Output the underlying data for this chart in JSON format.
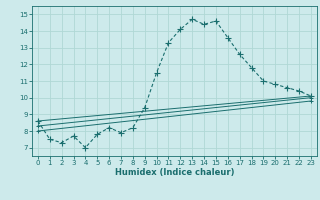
{
  "xlabel": "Humidex (Indice chaleur)",
  "bg_color": "#cdeaeb",
  "grid_color": "#b0d8d5",
  "line_color": "#1a6e6e",
  "xlim": [
    -0.5,
    23.5
  ],
  "ylim": [
    6.5,
    15.5
  ],
  "yticks": [
    7,
    8,
    9,
    10,
    11,
    12,
    13,
    14,
    15
  ],
  "xticks": [
    0,
    1,
    2,
    3,
    4,
    5,
    6,
    7,
    8,
    9,
    10,
    11,
    12,
    13,
    14,
    15,
    16,
    17,
    18,
    19,
    20,
    21,
    22,
    23
  ],
  "main_curve": [
    [
      0,
      8.6
    ],
    [
      1,
      7.5
    ],
    [
      2,
      7.3
    ],
    [
      3,
      7.7
    ],
    [
      4,
      7.0
    ],
    [
      5,
      7.8
    ],
    [
      6,
      8.2
    ],
    [
      7,
      7.9
    ],
    [
      8,
      8.2
    ],
    [
      9,
      9.4
    ],
    [
      10,
      11.5
    ],
    [
      11,
      13.3
    ],
    [
      12,
      14.1
    ],
    [
      13,
      14.7
    ],
    [
      14,
      14.4
    ],
    [
      15,
      14.6
    ],
    [
      16,
      13.6
    ],
    [
      17,
      12.6
    ],
    [
      18,
      11.8
    ],
    [
      19,
      11.0
    ],
    [
      20,
      10.8
    ],
    [
      21,
      10.6
    ],
    [
      22,
      10.4
    ],
    [
      23,
      10.1
    ]
  ],
  "ref_lines": [
    [
      [
        0,
        8.6
      ],
      [
        23,
        10.1
      ]
    ],
    [
      [
        0,
        8.3
      ],
      [
        23,
        10.0
      ]
    ],
    [
      [
        0,
        8.0
      ],
      [
        23,
        9.8
      ]
    ]
  ]
}
